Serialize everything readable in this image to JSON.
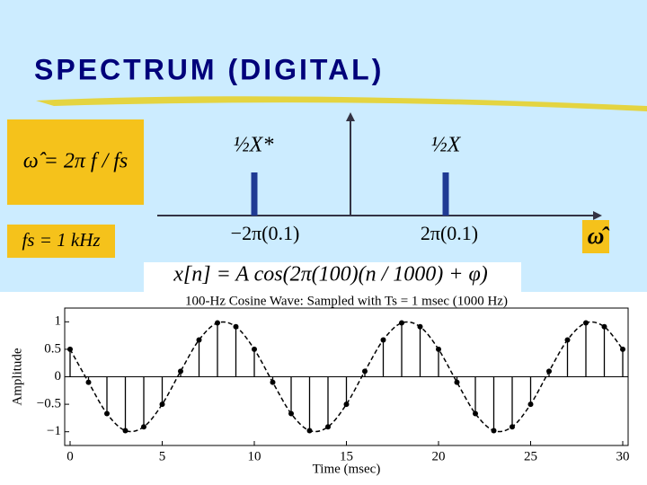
{
  "slide": {
    "title": "SPECTRUM (DIGITAL)",
    "formula_omega": "ω̂ = 2π f / fs",
    "formula_fs": "fs = 1 kHz",
    "axis_label": "ω̂",
    "line_left_label": "½X*",
    "line_right_label": "½X",
    "freq_left": "−2π(0.1)",
    "freq_right": "2π(0.1)",
    "equation": "x[n] = A cos(2π(100)(n / 1000) + φ)"
  },
  "chart_data": {
    "type": "stem",
    "title": "100-Hz Cosine Wave: Sampled with Ts = 1 msec (1000 Hz)",
    "x_label": "Time (msec)",
    "y_label": "Amplitude",
    "x": [
      0,
      1,
      2,
      3,
      4,
      5,
      6,
      7,
      8,
      9,
      10,
      11,
      12,
      13,
      14,
      15,
      16,
      17,
      18,
      19,
      20,
      21,
      22,
      23,
      24,
      25,
      26,
      27,
      28,
      29,
      30
    ],
    "values": [
      0.5,
      -0.1,
      -0.67,
      -0.98,
      -0.91,
      -0.5,
      0.1,
      0.67,
      0.98,
      0.91,
      0.5,
      -0.1,
      -0.67,
      -0.98,
      -0.91,
      -0.5,
      0.1,
      0.67,
      0.98,
      0.91,
      0.5,
      -0.1,
      -0.67,
      -0.98,
      -0.91,
      -0.5,
      0.1,
      0.67,
      0.98,
      0.91,
      0.5
    ],
    "color": "#000000",
    "xlim": [
      0,
      30
    ],
    "xticks": [
      0,
      5,
      10,
      15,
      20,
      25,
      30
    ],
    "ylim": [
      -1.25,
      1.25
    ],
    "yticks": [
      {
        "value": -1,
        "label": "−1"
      },
      {
        "value": -0.5,
        "label": "−0.5"
      },
      0,
      0.5,
      1
    ]
  }
}
